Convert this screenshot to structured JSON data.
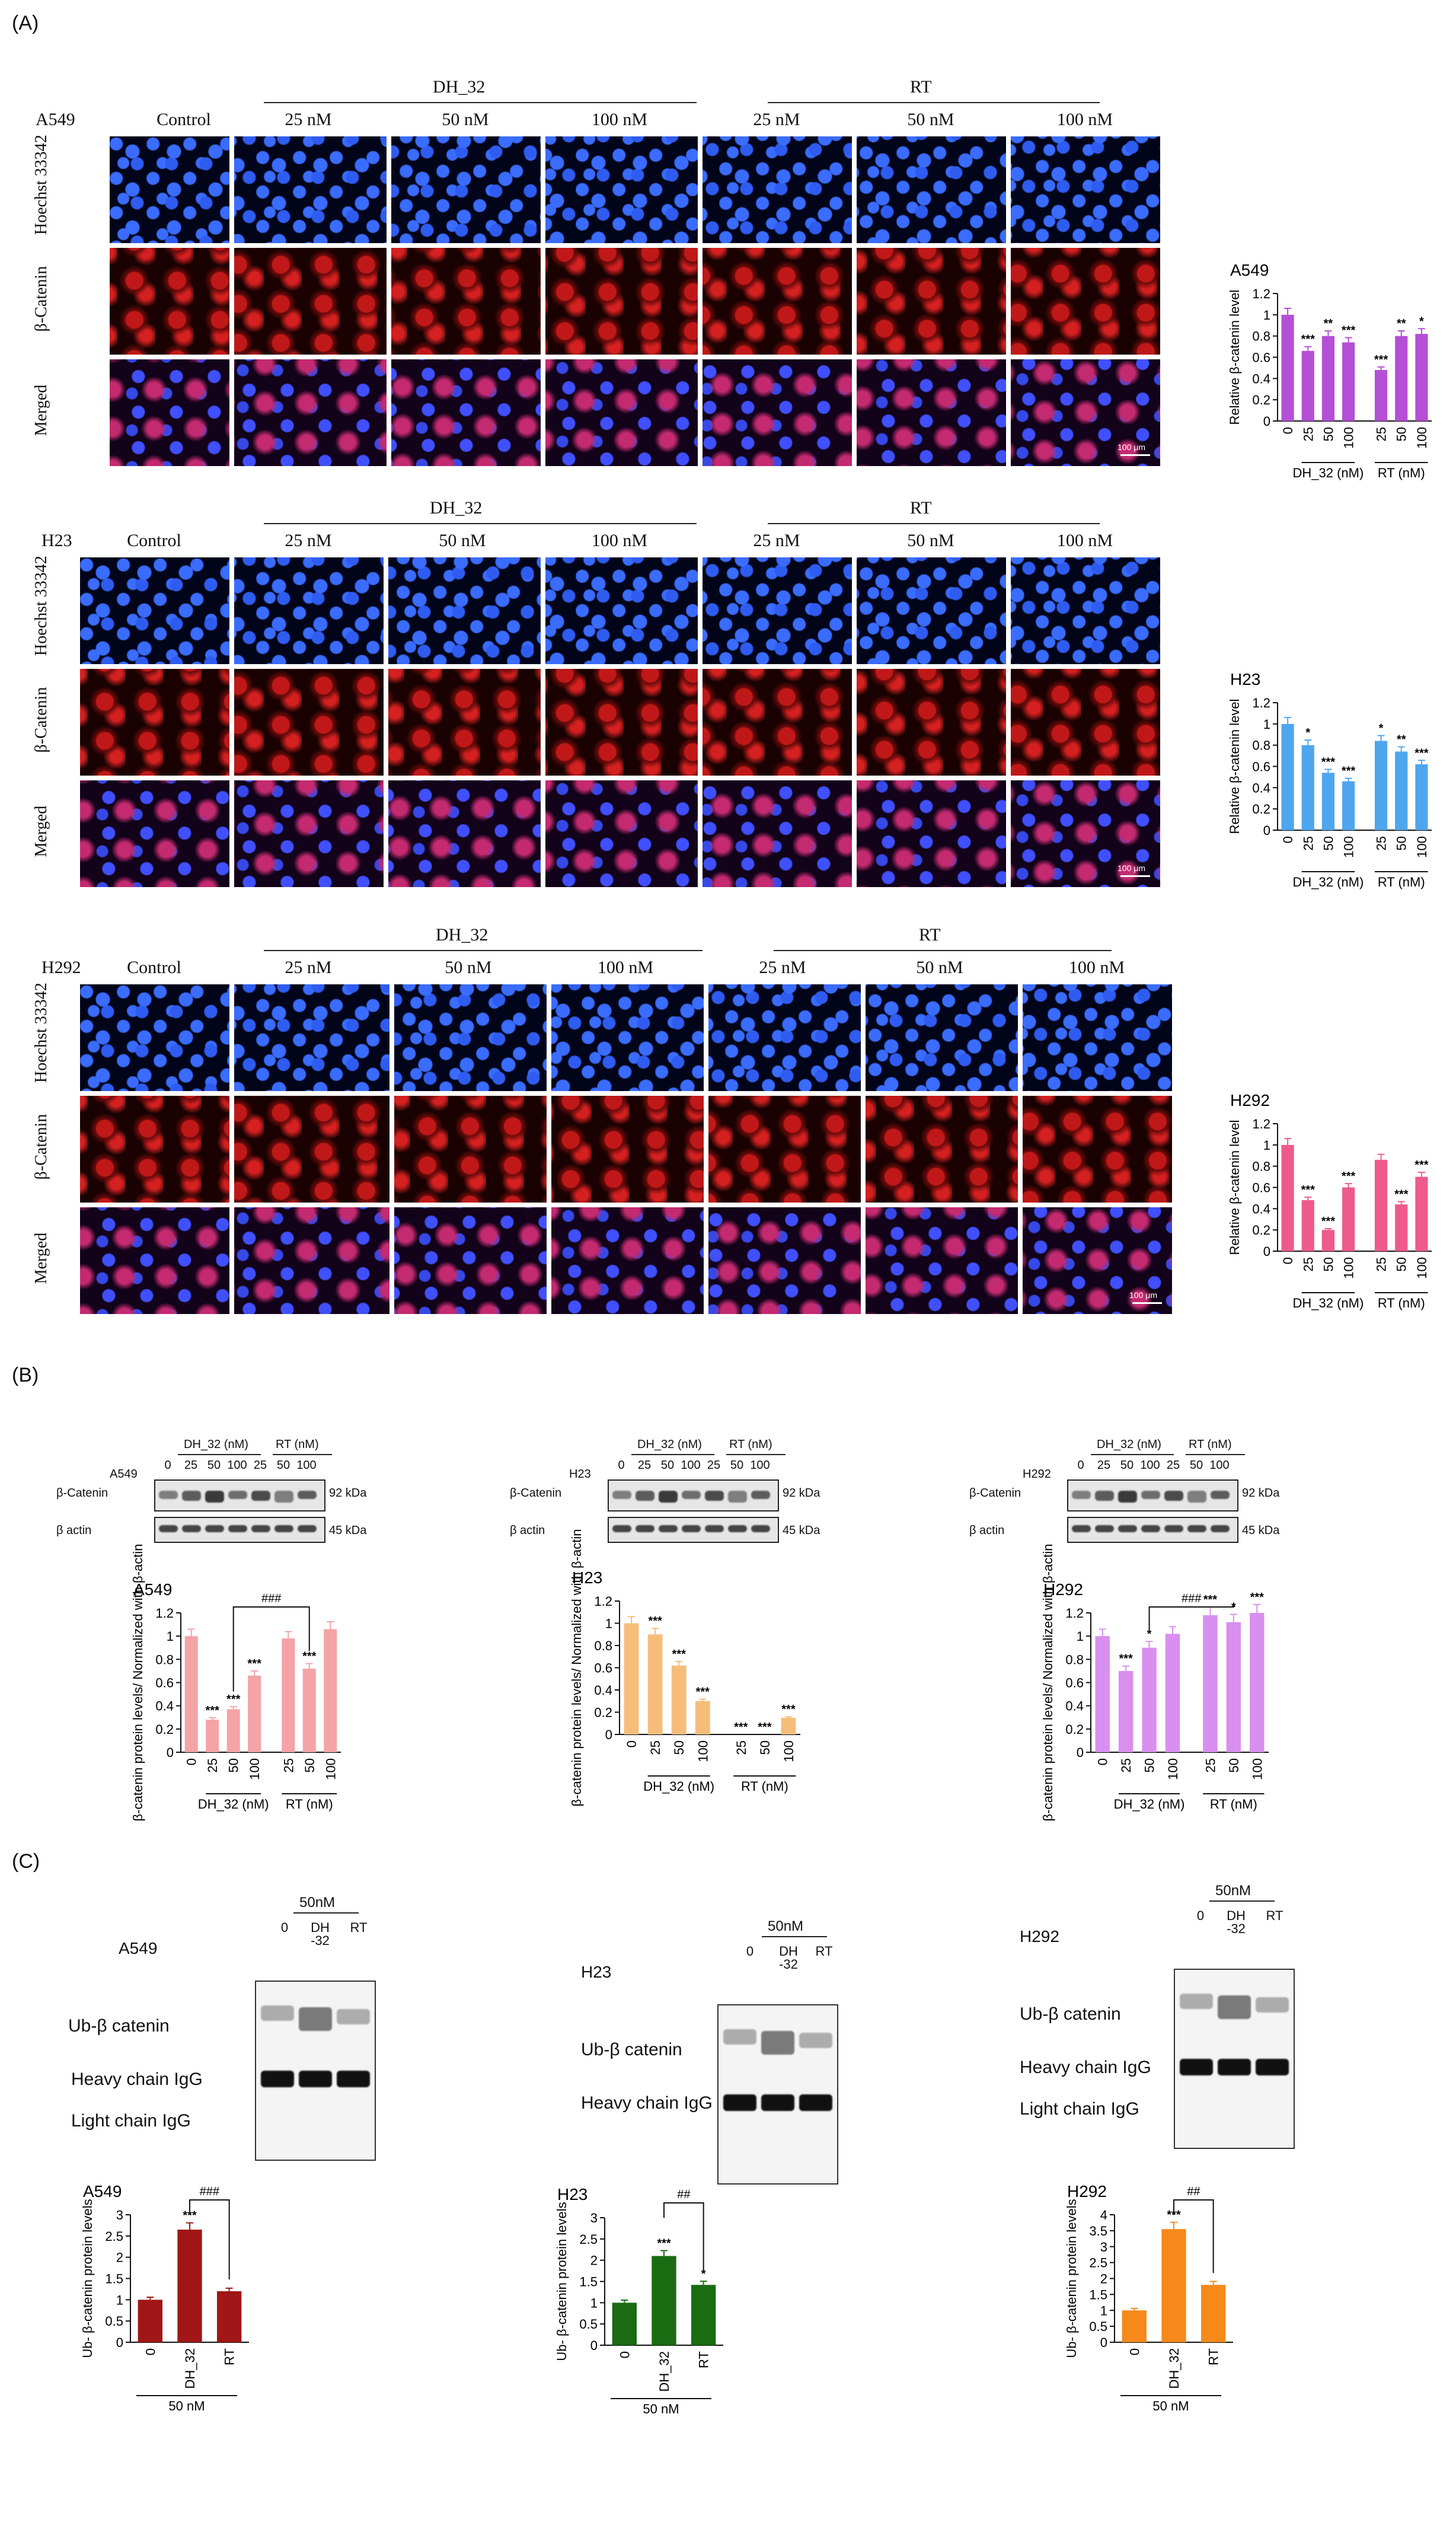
{
  "panels": {
    "A": "(A)",
    "B": "(B)",
    "C": "(C)"
  },
  "panelA": {
    "group_labels": {
      "dh": "DH_32",
      "rt": "RT"
    },
    "conc_labels": [
      "25 nM",
      "50 nM",
      "100 nM"
    ],
    "control": "Control",
    "row_labels": [
      "Hoechst 33342",
      "β-Catenin",
      "Merged"
    ],
    "cell_lines": [
      "A549",
      "H23",
      "H292"
    ],
    "scale_bar": "100 μm"
  },
  "panelB": {
    "blot_header": {
      "dh": "DH_32 (nM)",
      "rt": "RT (nM)"
    },
    "lanes": [
      "0",
      "25",
      "50",
      "100",
      "25",
      "50",
      "100"
    ],
    "rows": [
      "β-Catenin",
      "β actin"
    ],
    "kda": [
      "92 kDa",
      "45 kDa"
    ]
  },
  "panelC": {
    "conc": "50nM",
    "lanes": [
      "0",
      "DH -32",
      "RT"
    ],
    "labels": {
      "ub": "Ub-β catenin",
      "heavy": "Heavy chain IgG",
      "light": "Light chain IgG"
    }
  },
  "chart_data": [
    {
      "id": "A-A549",
      "type": "bar",
      "title": "A549",
      "ylabel": "Relative β-catenin level",
      "ylim": [
        0,
        1.2
      ],
      "yticks": [
        0,
        0.2,
        0.4,
        0.6,
        0.8,
        1.0,
        1.2
      ],
      "categories": [
        "0",
        "25",
        "50",
        "100",
        "25",
        "50",
        "100"
      ],
      "values": [
        1.0,
        0.66,
        0.8,
        0.74,
        0.48,
        0.8,
        0.82
      ],
      "significance": [
        "",
        "***",
        "**",
        "***",
        "***",
        "**",
        "*"
      ],
      "group_labels": [
        "DH_32 (nM)",
        "RT (nM)"
      ],
      "color": "#b44fd6"
    },
    {
      "id": "A-H23",
      "type": "bar",
      "title": "H23",
      "ylabel": "Relative β-catenin level",
      "ylim": [
        0,
        1.2
      ],
      "yticks": [
        0,
        0.2,
        0.4,
        0.6,
        0.8,
        1.0,
        1.2
      ],
      "categories": [
        "0",
        "25",
        "50",
        "100",
        "25",
        "50",
        "100"
      ],
      "values": [
        1.0,
        0.8,
        0.54,
        0.46,
        0.84,
        0.74,
        0.62
      ],
      "significance": [
        "",
        "*",
        "***",
        "***",
        "*",
        "**",
        "***"
      ],
      "group_labels": [
        "DH_32 (nM)",
        "RT (nM)"
      ],
      "color": "#4ea6ee"
    },
    {
      "id": "A-H292",
      "type": "bar",
      "title": "H292",
      "ylabel": "Relative β-catenin level",
      "ylim": [
        0,
        1.2
      ],
      "yticks": [
        0,
        0.2,
        0.4,
        0.6,
        0.8,
        1.0,
        1.2
      ],
      "categories": [
        "0",
        "25",
        "50",
        "100",
        "25",
        "50",
        "100"
      ],
      "values": [
        1.0,
        0.48,
        0.2,
        0.6,
        0.86,
        0.44,
        0.7
      ],
      "significance": [
        "",
        "***",
        "***",
        "***",
        "",
        "***",
        "***"
      ],
      "group_labels": [
        "DH_32 (nM)",
        "RT (nM)"
      ],
      "color": "#ee5a8c"
    },
    {
      "id": "B-A549",
      "type": "bar",
      "title": "A549",
      "ylabel": "β-catenin protein levels/ Normalized with β-actin",
      "ylim": [
        0,
        1.2
      ],
      "yticks": [
        0,
        0.2,
        0.4,
        0.6,
        0.8,
        1.0,
        1.2
      ],
      "categories": [
        "0",
        "25",
        "50",
        "100",
        "25",
        "50",
        "100"
      ],
      "values": [
        1.0,
        0.28,
        0.37,
        0.66,
        0.98,
        0.72,
        1.06
      ],
      "significance": [
        "",
        "***",
        "***",
        "***",
        "",
        "***",
        ""
      ],
      "group_labels": [
        "DH_32 (nM)",
        "RT (nM)"
      ],
      "bracket": "###",
      "color": "#f4a3a6"
    },
    {
      "id": "B-H23",
      "type": "bar",
      "title": "H23",
      "ylabel": "β-catenin protein levels/ Normalized with β-actin",
      "ylim": [
        0,
        1.2
      ],
      "yticks": [
        0,
        0.2,
        0.4,
        0.6,
        0.8,
        1.0,
        1.2
      ],
      "categories": [
        "0",
        "25",
        "50",
        "100",
        "25",
        "50",
        "100"
      ],
      "values": [
        1.0,
        0.9,
        0.62,
        0.3,
        0.0,
        0.0,
        0.15
      ],
      "significance": [
        "",
        "***",
        "***",
        "***",
        "***",
        "***",
        "***"
      ],
      "group_labels": [
        "DH_32 (nM)",
        "RT (nM)"
      ],
      "color": "#f6bd7a"
    },
    {
      "id": "B-H292",
      "type": "bar",
      "title": "H292",
      "ylabel": "β-catenin protein levels/ Normalized with β-actin",
      "ylim": [
        0,
        1.2
      ],
      "yticks": [
        0,
        0.2,
        0.4,
        0.6,
        0.8,
        1.0,
        1.2
      ],
      "categories": [
        "0",
        "25",
        "50",
        "100",
        "25",
        "50",
        "100"
      ],
      "values": [
        1.0,
        0.7,
        0.9,
        1.02,
        1.18,
        1.12,
        1.2
      ],
      "significance": [
        "",
        "***",
        "*",
        "",
        "***",
        "*",
        "***"
      ],
      "group_labels": [
        "DH_32 (nM)",
        "RT (nM)"
      ],
      "bracket": "###",
      "color": "#d98fef"
    },
    {
      "id": "C-A549",
      "type": "bar",
      "title": "A549",
      "ylabel": "Ub- β-catenin protein levels",
      "ylim": [
        0,
        3.0
      ],
      "yticks": [
        0,
        0.5,
        1.0,
        1.5,
        2.0,
        2.5,
        3.0
      ],
      "categories": [
        "0",
        "DH_32",
        "RT"
      ],
      "values": [
        1.0,
        2.65,
        1.2
      ],
      "significance": [
        "",
        "***",
        ""
      ],
      "bracket": "###",
      "xgroup": "50 nM",
      "color": "#a11616"
    },
    {
      "id": "C-H23",
      "type": "bar",
      "title": "H23",
      "ylabel": "Ub- β-catenin protein levels",
      "ylim": [
        0,
        3.0
      ],
      "yticks": [
        0,
        0.5,
        1.0,
        1.5,
        2.0,
        2.5,
        3.0
      ],
      "categories": [
        "0",
        "DH_32",
        "RT"
      ],
      "values": [
        1.0,
        2.1,
        1.42
      ],
      "significance": [
        "",
        "***",
        "*"
      ],
      "bracket": "##",
      "xgroup": "50 nM",
      "color": "#1a6b12"
    },
    {
      "id": "C-H292",
      "type": "bar",
      "title": "H292",
      "ylabel": "Ub- β-catenin protein levels",
      "ylim": [
        0,
        4.0
      ],
      "yticks": [
        0,
        0.5,
        1.0,
        1.5,
        2.0,
        2.5,
        3.0,
        3.5,
        4.0
      ],
      "categories": [
        "0",
        "DH_32",
        "RT"
      ],
      "values": [
        1.0,
        3.55,
        1.8
      ],
      "significance": [
        "",
        "***",
        ""
      ],
      "bracket": "##",
      "xgroup": "50 nM",
      "color": "#f5891a"
    }
  ]
}
